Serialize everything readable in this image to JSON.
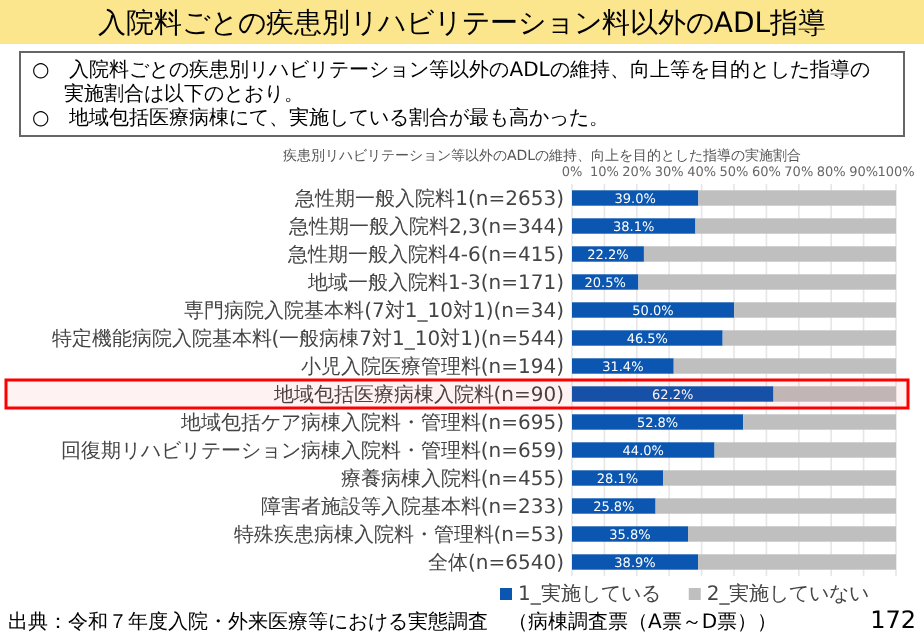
{
  "chart_data": {
    "type": "bar",
    "orientation": "horizontal",
    "stacked": true,
    "title": "入院料ごとの疾患別リハビリテーション料以外のADL指導",
    "subtitle": "疾患別リハビリテーション等以外のADLの維持、向上を目的とした指導の実施割合",
    "categories": [
      "急性期一般入院料1(n=2653)",
      "急性期一般入院料2,3(n=344)",
      "急性期一般入院料4-6(n=415)",
      "地域一般入院料1-3(n=171)",
      "専門病院入院基本料(7対1_10対1)(n=34)",
      "特定機能病院入院基本料(一般病棟7対1_10対1)(n=544)",
      "小児入院医療管理料(n=194)",
      "地域包括医療病棟入院料(n=90)",
      "地域包括ケア病棟入院料・管理料(n=695)",
      "回復期リハビリテーション病棟入院料・管理料(n=659)",
      "療養病棟入院料(n=455)",
      "障害者施設等入院基本料(n=233)",
      "特殊疾患病棟入院料・管理料(n=53)",
      "全体(n=6540)"
    ],
    "series": [
      {
        "name": "1_実施している",
        "color": "#0a56b0",
        "values": [
          39.0,
          38.1,
          22.2,
          20.5,
          50.0,
          46.5,
          31.4,
          62.2,
          52.8,
          44.0,
          28.1,
          25.8,
          35.8,
          38.9
        ],
        "value_labels": [
          "39.0%",
          "38.1%",
          "22.2%",
          "20.5%",
          "50.0%",
          "46.5%",
          "31.4%",
          "62.2%",
          "52.8%",
          "44.0%",
          "28.1%",
          "25.8%",
          "35.8%",
          "38.9%"
        ]
      },
      {
        "name": "2_実施していない",
        "color": "#bfbfbf",
        "values": [
          61.0,
          61.9,
          77.8,
          79.5,
          50.0,
          53.5,
          68.6,
          37.8,
          47.2,
          56.0,
          71.9,
          74.2,
          64.2,
          61.1
        ]
      }
    ],
    "xlim": [
      0,
      100
    ],
    "xticks": [
      {
        "value": 0,
        "label": "0%"
      },
      {
        "value": 10,
        "label": "10%"
      },
      {
        "value": 20,
        "label": "20%"
      },
      {
        "value": 30,
        "label": "30%"
      },
      {
        "value": 40,
        "label": "40%"
      },
      {
        "value": 50,
        "label": "50%"
      },
      {
        "value": 60,
        "label": "60%"
      },
      {
        "value": 70,
        "label": "70%"
      },
      {
        "value": 80,
        "label": "80%"
      },
      {
        "value": 90,
        "label": "90%"
      },
      {
        "value": 100,
        "label": "100%"
      }
    ],
    "grid": "x",
    "legend": "bottom",
    "bands": [
      {
        "axis": "y",
        "from": "地域包括医療病棟入院料(n=90)",
        "to": "地域包括医療病棟入院料(n=90)",
        "color": "#ff0000"
      }
    ],
    "annotations": [
      "○　入院料ごとの疾患別リハビリテーション等以外のADLの維持、向上等を目的とした指導の実施割合は以下のとおり。",
      "○　地域包括医療病棟にて、実施している割合が最も高かった。",
      "出典：令和７年度入院・外来医療等における実態調査　（病棟調査票（A票～D票））",
      "172"
    ]
  }
}
